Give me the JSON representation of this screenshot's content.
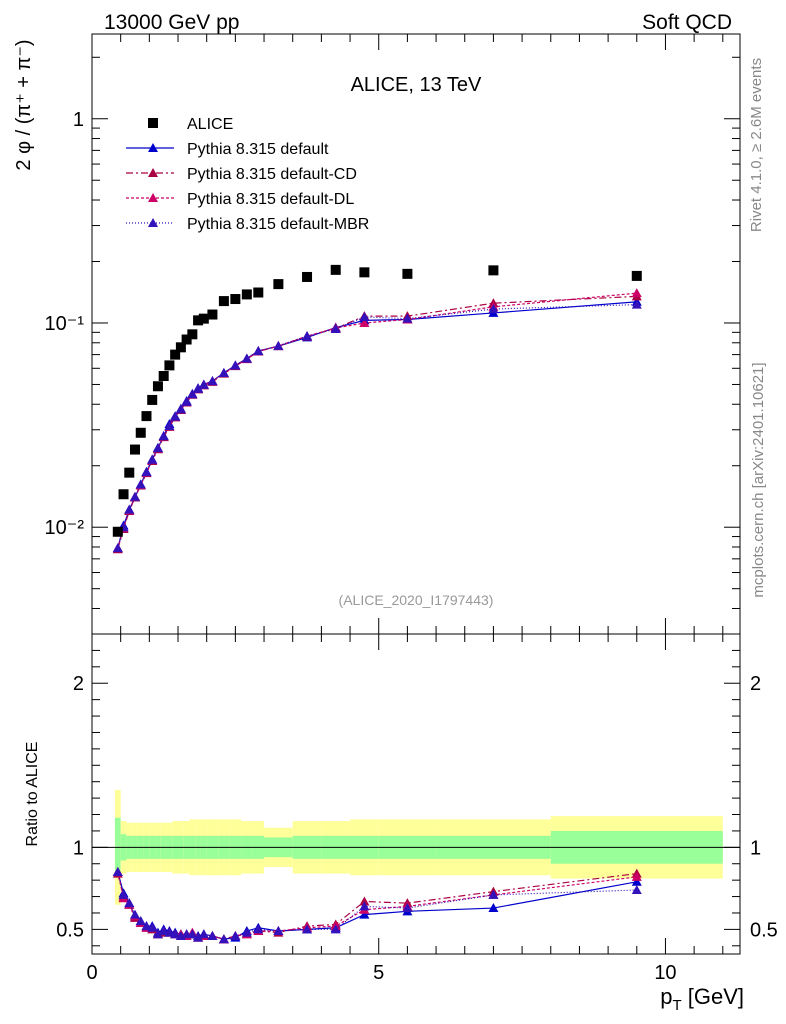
{
  "header": {
    "left": "13000 GeV pp",
    "right": "Soft QCD"
  },
  "side": {
    "rivet": "Rivet 4.1.0, ≥ 2.6M events",
    "mcplots": "mcplots.cern.ch [arXiv:2401.10621]"
  },
  "chart_data": [
    {
      "type": "scatter",
      "title": "ALICE, 13 TeV",
      "ylabel": "2 φ / (π⁺ + π⁻)",
      "yscale": "log",
      "ylim": [
        0.003,
        2.6
      ],
      "xlim": [
        0,
        11.3
      ],
      "ytick_labels": [
        {
          "v": 1,
          "label": "1"
        },
        {
          "v": 0.1,
          "label": "10⁻¹"
        },
        {
          "v": 0.01,
          "label": "10⁻²"
        }
      ],
      "analysis_label": "(ALICE_2020_I1797443)",
      "legend": [
        {
          "name": "ALICE",
          "marker": "square"
        },
        {
          "name": "Pythia 8.315 default",
          "marker": "triangle"
        },
        {
          "name": "Pythia 8.315 default-CD",
          "marker": "triangle"
        },
        {
          "name": "Pythia 8.315 default-DL",
          "marker": "triangle"
        },
        {
          "name": "Pythia 8.315 default-MBR",
          "marker": "triangle"
        }
      ],
      "data": {
        "name": "ALICE",
        "color": "#000000",
        "x": [
          0.45,
          0.55,
          0.65,
          0.75,
          0.85,
          0.95,
          1.05,
          1.15,
          1.25,
          1.35,
          1.45,
          1.55,
          1.65,
          1.75,
          1.85,
          1.95,
          2.1,
          2.3,
          2.5,
          2.7,
          2.9,
          3.25,
          3.75,
          4.25,
          4.75,
          5.5,
          7.0,
          9.5
        ],
        "y": [
          0.0095,
          0.0145,
          0.0185,
          0.024,
          0.029,
          0.035,
          0.042,
          0.049,
          0.055,
          0.062,
          0.07,
          0.076,
          0.083,
          0.088,
          0.103,
          0.105,
          0.11,
          0.128,
          0.131,
          0.138,
          0.141,
          0.155,
          0.168,
          0.182,
          0.177,
          0.174,
          0.181,
          0.17
        ]
      },
      "series": [
        {
          "name": "Pythia 8.315 default",
          "color": "#0000cc",
          "dash": "",
          "y": [
            0.0079,
            0.0102,
            0.0122,
            0.014,
            0.0162,
            0.0187,
            0.0215,
            0.0245,
            0.028,
            0.032,
            0.035,
            0.038,
            0.0415,
            0.045,
            0.048,
            0.05,
            0.052,
            0.057,
            0.062,
            0.067,
            0.073,
            0.077,
            0.085,
            0.095,
            0.103,
            0.104,
            0.112,
            0.127
          ]
        },
        {
          "name": "Pythia 8.315 default-CD",
          "color": "#aa0044",
          "dash": "7,3,2,3",
          "y": [
            0.0078,
            0.0098,
            0.012,
            0.014,
            0.016,
            0.0184,
            0.0211,
            0.0241,
            0.0276,
            0.031,
            0.0345,
            0.0375,
            0.0408,
            0.0445,
            0.0473,
            0.0495,
            0.0515,
            0.0565,
            0.0615,
            0.0665,
            0.0725,
            0.077,
            0.086,
            0.094,
            0.108,
            0.108,
            0.125,
            0.135
          ]
        },
        {
          "name": "Pythia 8.315 default-DL",
          "color": "#cc0066",
          "dash": "3,2",
          "y": [
            0.0079,
            0.0099,
            0.0121,
            0.0141,
            0.0161,
            0.0185,
            0.0213,
            0.0243,
            0.0278,
            0.0312,
            0.0347,
            0.0377,
            0.041,
            0.0447,
            0.0475,
            0.0497,
            0.0518,
            0.0568,
            0.0618,
            0.0668,
            0.0727,
            0.0772,
            0.0862,
            0.0945,
            0.1,
            0.104,
            0.12,
            0.14
          ]
        },
        {
          "name": "Pythia 8.315 default-MBR",
          "color": "#3311bb",
          "dash": "1,2",
          "y": [
            0.0079,
            0.01,
            0.0122,
            0.0141,
            0.0162,
            0.0186,
            0.0214,
            0.0244,
            0.0279,
            0.0313,
            0.0348,
            0.0378,
            0.0411,
            0.0448,
            0.0476,
            0.0498,
            0.0519,
            0.0569,
            0.0619,
            0.0669,
            0.0728,
            0.0773,
            0.0863,
            0.0935,
            0.107,
            0.105,
            0.117,
            0.123
          ]
        }
      ]
    },
    {
      "type": "line",
      "ylabel": "Ratio to ALICE",
      "xlabel": "p_T [GeV]",
      "xlim": [
        0,
        11.3
      ],
      "ylim": [
        0.35,
        2.3
      ],
      "xticks": [
        0,
        5,
        10
      ],
      "yticks_left": [
        0.5,
        1,
        2
      ],
      "yticks_right": [
        0.5,
        1,
        2
      ],
      "reference": 1,
      "x": [
        0.45,
        0.55,
        0.65,
        0.75,
        0.85,
        0.95,
        1.05,
        1.15,
        1.25,
        1.35,
        1.45,
        1.55,
        1.65,
        1.75,
        1.85,
        1.95,
        2.1,
        2.3,
        2.5,
        2.7,
        2.9,
        3.25,
        3.75,
        4.25,
        4.75,
        5.5,
        7.0,
        9.5
      ],
      "bin_edges": [
        0.4,
        0.5,
        0.6,
        0.7,
        0.8,
        0.9,
        1.0,
        1.1,
        1.2,
        1.3,
        1.4,
        1.5,
        1.6,
        1.7,
        1.8,
        1.9,
        2.0,
        2.2,
        2.4,
        2.6,
        2.8,
        3.0,
        3.5,
        4.0,
        4.5,
        5.0,
        6.0,
        8.0,
        11.0
      ],
      "band_stat": [
        0.18,
        0.08,
        0.07,
        0.07,
        0.07,
        0.07,
        0.07,
        0.07,
        0.07,
        0.07,
        0.07,
        0.07,
        0.07,
        0.07,
        0.07,
        0.07,
        0.07,
        0.07,
        0.07,
        0.07,
        0.07,
        0.06,
        0.07,
        0.07,
        0.07,
        0.07,
        0.07,
        0.1
      ],
      "band_total": [
        0.35,
        0.16,
        0.15,
        0.15,
        0.15,
        0.15,
        0.15,
        0.15,
        0.15,
        0.15,
        0.16,
        0.16,
        0.16,
        0.17,
        0.17,
        0.17,
        0.17,
        0.17,
        0.17,
        0.16,
        0.16,
        0.12,
        0.16,
        0.16,
        0.17,
        0.17,
        0.17,
        0.19
      ],
      "series": [
        {
          "name": "Pythia 8.315 default",
          "color": "#0000cc",
          "dash": "",
          "y": [
            0.85,
            0.72,
            0.66,
            0.58,
            0.55,
            0.52,
            0.52,
            0.48,
            0.5,
            0.49,
            0.48,
            0.47,
            0.47,
            0.47,
            0.46,
            0.47,
            0.46,
            0.44,
            0.45,
            0.49,
            0.51,
            0.49,
            0.5,
            0.51,
            0.59,
            0.61,
            0.63,
            0.79
          ]
        },
        {
          "name": "Pythia 8.315 default-CD",
          "color": "#aa0044",
          "dash": "7,3,2,3",
          "y": [
            0.84,
            0.7,
            0.65,
            0.57,
            0.54,
            0.51,
            0.5,
            0.47,
            0.48,
            0.48,
            0.47,
            0.46,
            0.47,
            0.47,
            0.45,
            0.46,
            0.46,
            0.44,
            0.46,
            0.47,
            0.49,
            0.48,
            0.52,
            0.53,
            0.67,
            0.66,
            0.73,
            0.84
          ]
        },
        {
          "name": "Pythia 8.315 default-DL",
          "color": "#cc0066",
          "dash": "3,2",
          "y": [
            0.85,
            0.69,
            0.65,
            0.58,
            0.54,
            0.51,
            0.51,
            0.47,
            0.49,
            0.48,
            0.47,
            0.47,
            0.46,
            0.48,
            0.45,
            0.46,
            0.46,
            0.44,
            0.46,
            0.47,
            0.49,
            0.49,
            0.51,
            0.52,
            0.62,
            0.64,
            0.71,
            0.82
          ]
        },
        {
          "name": "Pythia 8.315 default-MBR",
          "color": "#3311bb",
          "dash": "1,2",
          "y": [
            0.85,
            0.71,
            0.66,
            0.59,
            0.55,
            0.52,
            0.51,
            0.47,
            0.49,
            0.48,
            0.47,
            0.46,
            0.47,
            0.47,
            0.45,
            0.47,
            0.46,
            0.44,
            0.46,
            0.48,
            0.5,
            0.49,
            0.5,
            0.5,
            0.64,
            0.63,
            0.71,
            0.74
          ]
        }
      ]
    }
  ]
}
